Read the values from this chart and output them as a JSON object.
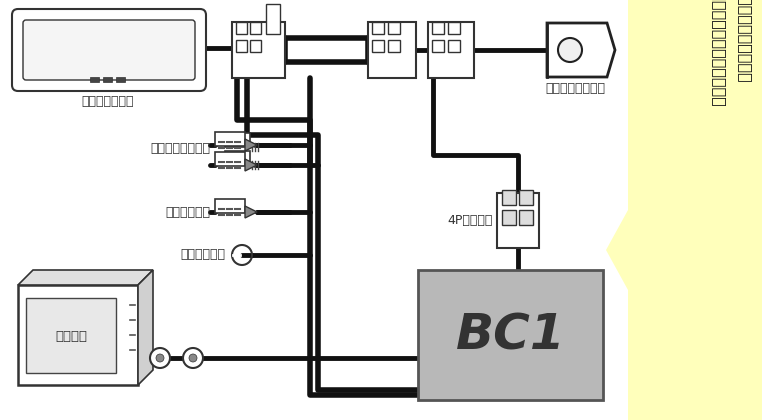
{
  "bg_color": "#ffffff",
  "sidebar_color": "#ffffbb",
  "bc1_color": "#b8b8b8",
  "bc1_label": "BC1",
  "labels": {
    "mirror": "ミラーモニター",
    "acc": "アクセサリー電源",
    "reverse": "リバース信号",
    "body": "ボディアース",
    "camera": "純正バックカメラ",
    "coupler": "4Pカプラー",
    "navi": "市販ナビ"
  },
  "sidebar_text1": "自動防眩ミラーのバックカメラ",
  "sidebar_text2": "映像を市販ナビ（社外ナビ）に映す配線図",
  "wire_color": "#111111",
  "wire_lw": 3.5
}
